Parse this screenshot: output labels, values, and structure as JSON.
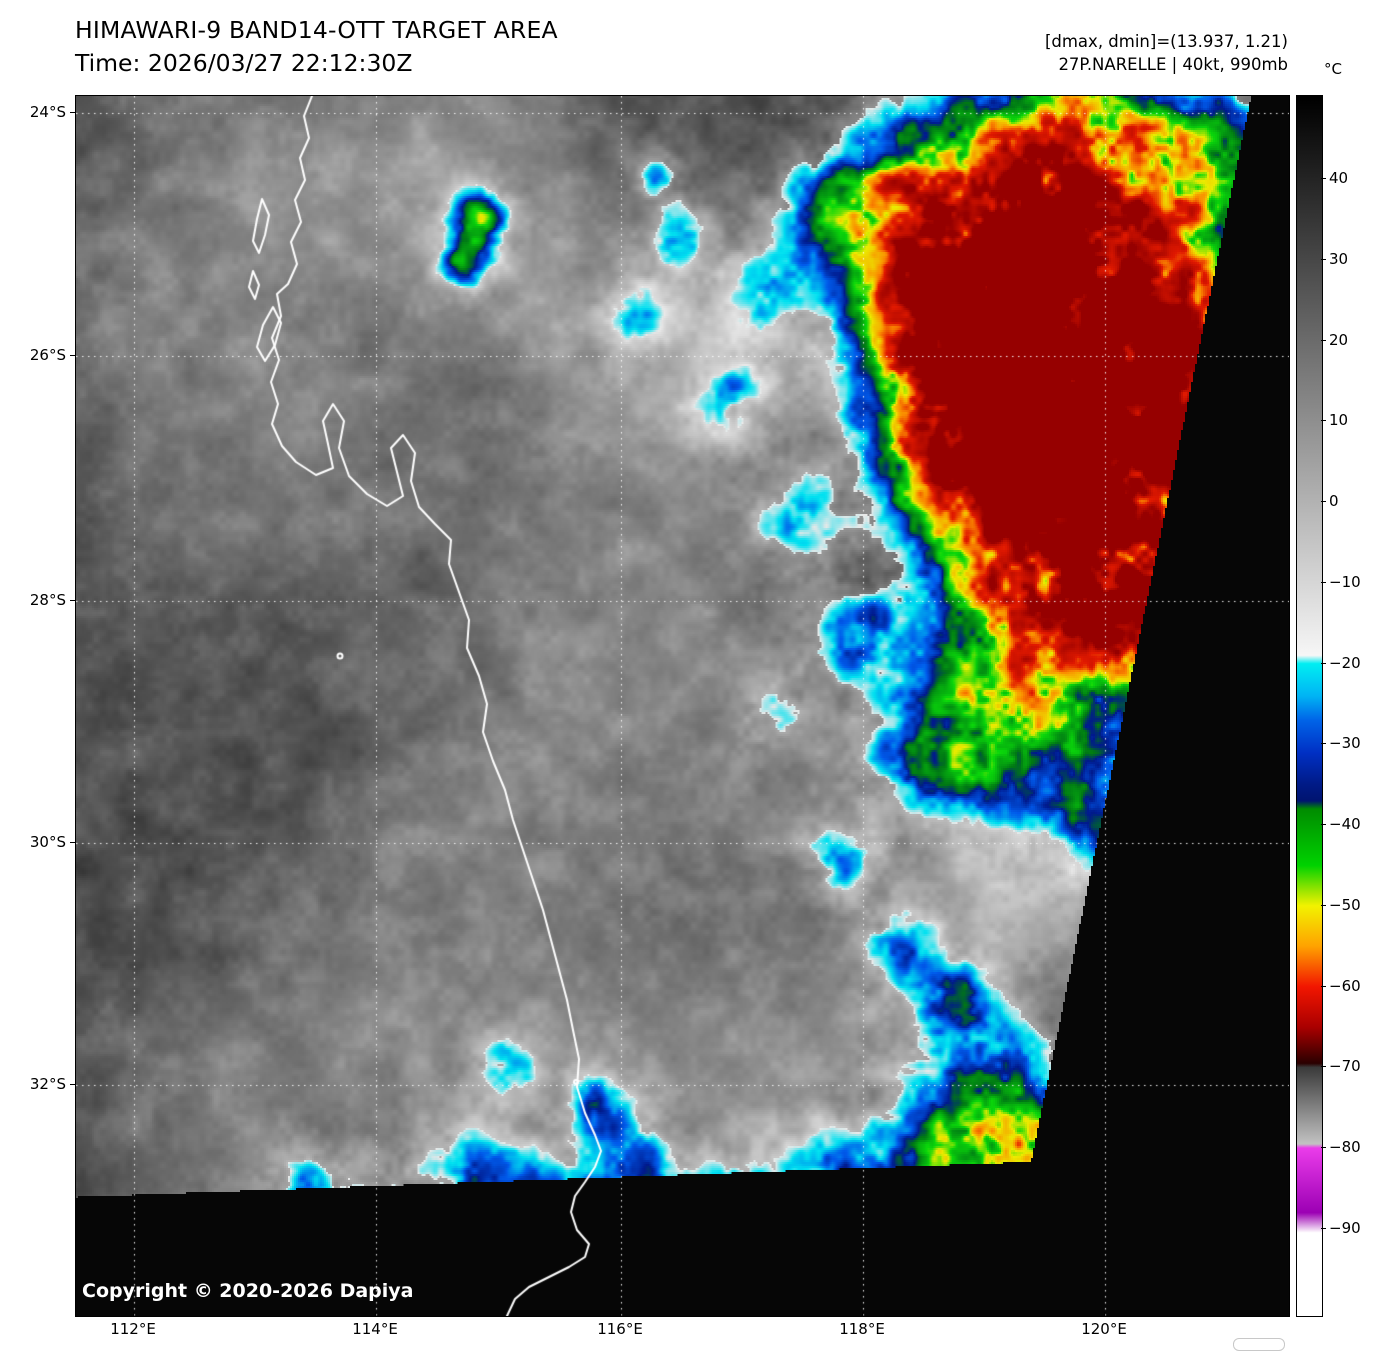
{
  "header": {
    "title": "HIMAWARI-9 BAND14-OTT TARGET AREA",
    "time": "Time: 2026/03/27 22:12:30Z",
    "dmax_dmin": "[dmax, dmin]=(13.937, 1.21)",
    "storm_info": "27P.NARELLE | 40kt, 990mb"
  },
  "map": {
    "lat_labels": [
      "24°S",
      "26°S",
      "28°S",
      "30°S",
      "32°S"
    ],
    "lon_labels": [
      "112°E",
      "114°E",
      "116°E",
      "118°E",
      "120°E"
    ],
    "copyright": "Copyright © 2020-2026 Dapiya"
  },
  "colorbar": {
    "unit": "°C",
    "ticks": [
      "40",
      "30",
      "20",
      "10",
      "0",
      "−10",
      "−20",
      "−30",
      "−40",
      "−50",
      "−60",
      "−70",
      "−80",
      "−90"
    ],
    "gradient_stops": [
      [
        50,
        "#000000"
      ],
      [
        -19,
        "#f6f6f6"
      ],
      [
        -20,
        "#00eef2"
      ],
      [
        -24,
        "#00b4f4"
      ],
      [
        -27,
        "#0064e8"
      ],
      [
        -31,
        "#0030c4"
      ],
      [
        -35,
        "#001a86"
      ],
      [
        -37,
        "#001470"
      ],
      [
        -38,
        "#008c00"
      ],
      [
        -45,
        "#00d200"
      ],
      [
        -48,
        "#96e400"
      ],
      [
        -50,
        "#f2f200"
      ],
      [
        -55,
        "#ffa200"
      ],
      [
        -60,
        "#f21600"
      ],
      [
        -65,
        "#aa0000"
      ],
      [
        -69.5,
        "#2a0000"
      ],
      [
        -70,
        "#3a3a3a"
      ],
      [
        -79.5,
        "#c2c2c2"
      ],
      [
        -80,
        "#ea3cea"
      ],
      [
        -88,
        "#9c00b4"
      ],
      [
        -90.5,
        "#ffffff"
      ],
      [
        -100,
        "#ffffff"
      ]
    ]
  }
}
